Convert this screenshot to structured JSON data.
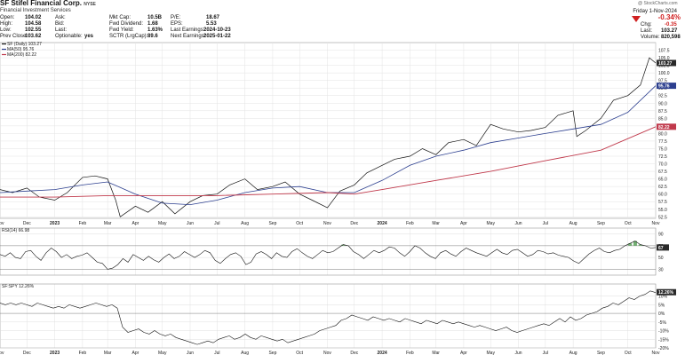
{
  "header": {
    "symbol_title": "SF Stifel Financial Corp.",
    "exchange": "NYSE",
    "subtitle": "Financial Investment Services",
    "stats_col1": [
      {
        "label": "Open:",
        "value": "104.02"
      },
      {
        "label": "High:",
        "value": "104.58"
      },
      {
        "label": "Low:",
        "value": "102.55"
      },
      {
        "label": "Prev Close:",
        "value": "103.62"
      }
    ],
    "stats_col2": [
      {
        "label": "Ask:",
        "value": ""
      },
      {
        "label": "Bid:",
        "value": ""
      },
      {
        "label": "Last:",
        "value": ""
      },
      {
        "label": "Optionable:",
        "value": "yes"
      }
    ],
    "stats_col3": [
      {
        "label": "Mkt Cap:",
        "value": "10.5B"
      },
      {
        "label": "Fwd Dividend:",
        "value": "1.68"
      },
      {
        "label": "Fwd Yield:",
        "value": "1.63%"
      },
      {
        "label": "SCTR (LrgCap):",
        "value": "89.6"
      }
    ],
    "stats_col4": [
      {
        "label": "P/E:",
        "value": "18.67"
      },
      {
        "label": "EPS:",
        "value": "5.53"
      },
      {
        "label": "Last Earnings:",
        "value": "2024-10-23"
      },
      {
        "label": "Next Earnings:",
        "value": "2025-01-22"
      }
    ],
    "date": "Friday 1-Nov-2024",
    "change_pct": "-0.34%",
    "right_stats": [
      {
        "label": "Chg:",
        "value": "-0.35"
      },
      {
        "label": "Last:",
        "value": "103.27"
      },
      {
        "label": "Volume:",
        "value": "820,598"
      }
    ],
    "watermark": "@ StockCharts.com"
  },
  "colors": {
    "price": "#111111",
    "ma50": "#2c3f8f",
    "ma200": "#c0394b",
    "rsi_fill": "#5aa15a",
    "value_box_dark": "#2c3f8f",
    "value_box_red": "#c0394b"
  },
  "chart_data": [
    {
      "type": "line",
      "name": "price_panel",
      "legend": [
        "SF (Daily) 103.27",
        "MA(50) 95.76",
        "MA(200) 82.22"
      ],
      "series": [
        {
          "name": "SF (Daily) 103.27",
          "x": [
            "2022-11-01",
            "2022-11-15",
            "2022-12-01",
            "2022-12-15",
            "2023-01-01",
            "2023-01-15",
            "2023-02-01",
            "2023-02-15",
            "2023-03-01",
            "2023-03-10",
            "2023-03-15",
            "2023-04-01",
            "2023-04-15",
            "2023-05-01",
            "2023-05-15",
            "2023-06-01",
            "2023-06-15",
            "2023-07-01",
            "2023-07-15",
            "2023-08-01",
            "2023-08-15",
            "2023-09-01",
            "2023-09-15",
            "2023-10-01",
            "2023-10-15",
            "2023-11-01",
            "2023-11-15",
            "2023-12-01",
            "2023-12-15",
            "2024-01-01",
            "2024-01-15",
            "2024-02-01",
            "2024-02-15",
            "2024-03-01",
            "2024-03-15",
            "2024-04-01",
            "2024-04-15",
            "2024-05-01",
            "2024-05-15",
            "2024-06-01",
            "2024-06-15",
            "2024-07-01",
            "2024-07-15",
            "2024-08-01",
            "2024-08-05",
            "2024-08-15",
            "2024-09-01",
            "2024-09-15",
            "2024-10-01",
            "2024-10-15",
            "2024-10-25",
            "2024-11-01"
          ],
          "values": [
            61.5,
            60.5,
            62.0,
            59.0,
            58.0,
            60.5,
            65.5,
            66.0,
            65.0,
            58.0,
            52.5,
            56.0,
            54.0,
            57.5,
            53.5,
            57.5,
            59.5,
            60.0,
            63.0,
            65.0,
            61.5,
            62.5,
            64.0,
            60.0,
            58.0,
            55.5,
            61.0,
            63.0,
            67.0,
            69.5,
            71.5,
            72.5,
            75.0,
            73.0,
            77.0,
            78.0,
            76.0,
            83.0,
            81.5,
            80.5,
            81.0,
            82.0,
            86.0,
            87.5,
            79.0,
            81.0,
            85.0,
            91.0,
            92.5,
            96.0,
            105.0,
            103.27
          ]
        },
        {
          "name": "MA(50) 95.76",
          "x": [
            "2022-11-01",
            "2022-12-01",
            "2023-01-01",
            "2023-02-01",
            "2023-03-01",
            "2023-04-01",
            "2023-05-01",
            "2023-06-01",
            "2023-07-01",
            "2023-08-01",
            "2023-09-01",
            "2023-10-01",
            "2023-11-01",
            "2023-12-01",
            "2024-01-01",
            "2024-02-01",
            "2024-03-01",
            "2024-04-01",
            "2024-05-01",
            "2024-06-01",
            "2024-07-01",
            "2024-08-01",
            "2024-09-01",
            "2024-10-01",
            "2024-11-01"
          ],
          "values": [
            60.5,
            61.0,
            61.5,
            63.0,
            64.0,
            60.0,
            57.0,
            56.5,
            58.0,
            60.5,
            62.0,
            62.5,
            60.5,
            60.5,
            64.5,
            69.5,
            72.5,
            74.5,
            77.0,
            78.5,
            80.0,
            81.5,
            83.0,
            87.0,
            95.76
          ]
        },
        {
          "name": "MA(200) 82.22",
          "x": [
            "2022-11-01",
            "2023-01-01",
            "2023-03-01",
            "2023-05-01",
            "2023-07-01",
            "2023-09-01",
            "2023-11-01",
            "2023-12-01",
            "2024-01-01",
            "2024-03-01",
            "2024-05-01",
            "2024-07-01",
            "2024-09-01",
            "2024-11-01"
          ],
          "values": [
            59.0,
            59.0,
            59.5,
            59.5,
            59.5,
            60.0,
            60.5,
            60.0,
            61.5,
            64.5,
            67.5,
            71.0,
            74.5,
            82.22
          ]
        }
      ],
      "y_ticks": [
        "107.5",
        "105.0",
        "102.5",
        "100.0",
        "97.5",
        "95.0",
        "92.5",
        "90.0",
        "87.5",
        "85.0",
        "82.5",
        "80.0",
        "77.5",
        "75.0",
        "72.5",
        "70.0",
        "67.5",
        "65.0",
        "62.5",
        "60.0",
        "57.5",
        "55.0",
        "52.5"
      ],
      "last_values": [
        "103.27",
        "95.76",
        "82.22"
      ],
      "ylim": [
        52,
        110
      ],
      "x_tick_labels": [
        "Nov",
        "Dec",
        "2023",
        "Feb",
        "Mar",
        "Apr",
        "May",
        "Jun",
        "Jul",
        "Aug",
        "Sep",
        "Oct",
        "Nov",
        "Dec",
        "2024",
        "Feb",
        "Mar",
        "Apr",
        "May",
        "Jun",
        "Jul",
        "Aug",
        "Sep",
        "Oct",
        "Nov"
      ],
      "grid": true
    },
    {
      "type": "line",
      "name": "rsi_panel",
      "legend": [
        "RSI(14) 66.98"
      ],
      "ylim": [
        20,
        100
      ],
      "y_ticks": [
        "90",
        "70",
        "50",
        "30"
      ],
      "last_value": "67",
      "series": [
        {
          "name": "RSI(14) 66.98",
          "values": [
            55,
            52,
            58,
            50,
            48,
            60,
            62,
            52,
            45,
            58,
            66,
            60,
            50,
            55,
            48,
            52,
            54,
            58,
            50,
            42,
            40,
            30,
            32,
            38,
            48,
            42,
            55,
            50,
            45,
            52,
            46,
            42,
            50,
            56,
            48,
            52,
            60,
            55,
            50,
            55,
            62,
            58,
            45,
            40,
            48,
            55,
            58,
            52,
            38,
            42,
            56,
            60,
            55,
            48,
            58,
            52,
            50,
            60,
            65,
            58,
            52,
            48,
            55,
            62,
            58,
            60,
            66,
            72,
            70,
            60,
            55,
            48,
            55,
            62,
            58,
            62,
            68,
            66,
            58,
            52,
            60,
            70,
            66,
            58,
            52,
            48,
            58,
            62,
            56,
            52,
            60,
            66,
            62,
            58,
            55,
            52,
            58,
            64,
            58,
            55,
            62,
            64,
            58,
            52,
            55,
            62,
            60,
            56,
            58,
            54,
            52,
            50,
            44,
            40,
            48,
            56,
            62,
            66,
            60,
            58,
            62,
            64,
            70,
            74,
            78,
            72,
            70,
            66,
            67
          ]
        }
      ]
    },
    {
      "type": "line",
      "name": "relative_strength_panel",
      "legend": [
        "SF:SPY 12.26%"
      ],
      "ylim": [
        -20,
        17
      ],
      "y_ticks": [
        "10%",
        "5%",
        "0%",
        "-5%",
        "-10%",
        "-15%",
        "-20%"
      ],
      "last_value": "12.26%",
      "series": [
        {
          "name": "SF:SPY 12.26%",
          "values": [
            6,
            5,
            6,
            5,
            6,
            5,
            4,
            6,
            5,
            4,
            3,
            4,
            3,
            5,
            4,
            3,
            4,
            5,
            6,
            5,
            4,
            5,
            3,
            -8,
            -11,
            -10,
            -9,
            -11,
            -12,
            -10,
            -12,
            -13,
            -12,
            -14,
            -15,
            -16,
            -17,
            -18,
            -17,
            -16,
            -17,
            -15,
            -14,
            -13,
            -15,
            -14,
            -12,
            -14,
            -15,
            -13,
            -14,
            -15,
            -16,
            -15,
            -17,
            -16,
            -15,
            -14,
            -13,
            -12,
            -10,
            -9,
            -8,
            -7,
            -4,
            -3,
            -1,
            -2,
            -3,
            -4,
            -2,
            -3,
            -4,
            -3,
            -4,
            -5,
            -3,
            -4,
            -5,
            -6,
            -4,
            -5,
            -6,
            -4,
            -5,
            -6,
            -5,
            -6,
            -7,
            -8,
            -7,
            -8,
            -9,
            -10,
            -9,
            -8,
            -10,
            -11,
            -10,
            -9,
            -8,
            -7,
            -6,
            -7,
            -5,
            -3,
            -5,
            -2,
            -4,
            -3,
            -1,
            0,
            1,
            3,
            4,
            6,
            5,
            7,
            9,
            8,
            10,
            11,
            13,
            12
          ]
        }
      ]
    }
  ]
}
